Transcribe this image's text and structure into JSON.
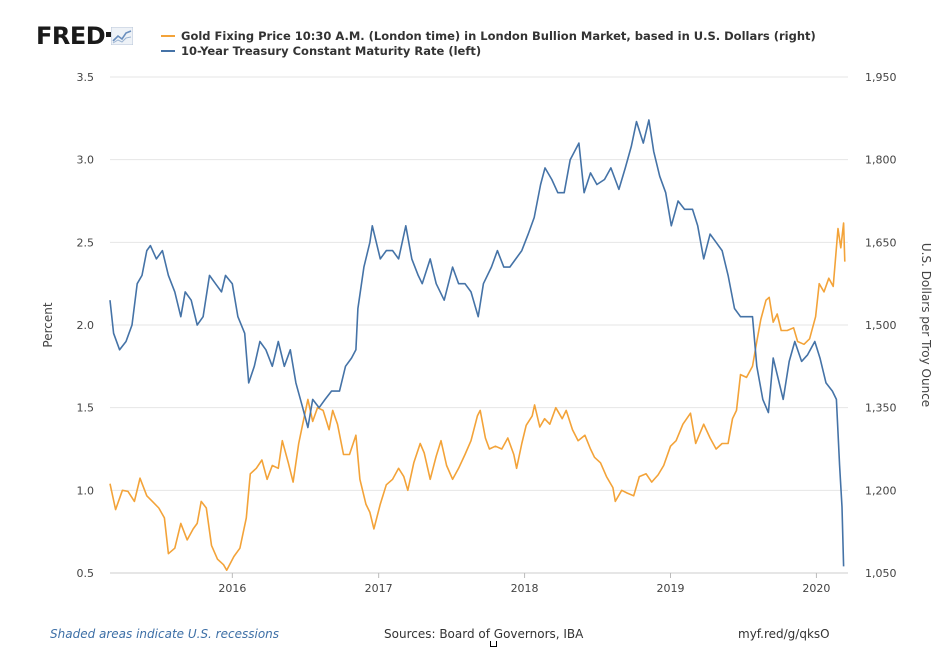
{
  "header": {
    "logo_text": "FRED",
    "logo_icon": "line-chart-icon"
  },
  "footer": {
    "recessions_note": "Shaded areas indicate U.S. recessions",
    "sources": "Sources: Board of Governors, IBA",
    "short_url": "myf.red/g/qksO"
  },
  "colors": {
    "gold": "#f3a339",
    "treasury": "#4573a7",
    "grid": "#e6e6e6",
    "axis_text": "#444444"
  },
  "chart_data": {
    "type": "line",
    "xlim": [
      "2015-03-01",
      "2020-03-20"
    ],
    "x_ticks": [
      "2016",
      "2017",
      "2018",
      "2019",
      "2020"
    ],
    "y_left": {
      "label": "Percent",
      "lim": [
        0.5,
        3.5
      ],
      "ticks": [
        "0.5",
        "1.0",
        "1.5",
        "2.0",
        "2.5",
        "3.0",
        "3.5"
      ]
    },
    "y_right": {
      "label": "U.S. Dollars per Troy Ounce",
      "lim": [
        1050,
        1950
      ],
      "ticks": [
        "1,050",
        "1,200",
        "1,350",
        "1,500",
        "1,650",
        "1,800",
        "1,950"
      ]
    },
    "grid": true,
    "legend_position": "top",
    "series": [
      {
        "name": "Gold Fixing Price 10:30 A.M. (London time) in London Bullion Market, based in U.S. Dollars (right)",
        "axis": "right",
        "color": "#f3a339",
        "points": [
          [
            "2015-03-01",
            1212
          ],
          [
            "2015-03-15",
            1165
          ],
          [
            "2015-04-01",
            1200
          ],
          [
            "2015-04-15",
            1198
          ],
          [
            "2015-05-01",
            1180
          ],
          [
            "2015-05-15",
            1222
          ],
          [
            "2015-06-01",
            1190
          ],
          [
            "2015-06-15",
            1180
          ],
          [
            "2015-07-01",
            1168
          ],
          [
            "2015-07-15",
            1150
          ],
          [
            "2015-07-25",
            1085
          ],
          [
            "2015-08-10",
            1095
          ],
          [
            "2015-08-25",
            1140
          ],
          [
            "2015-09-10",
            1110
          ],
          [
            "2015-09-25",
            1130
          ],
          [
            "2015-10-05",
            1140
          ],
          [
            "2015-10-15",
            1180
          ],
          [
            "2015-10-28",
            1168
          ],
          [
            "2015-11-10",
            1100
          ],
          [
            "2015-11-25",
            1075
          ],
          [
            "2015-12-10",
            1065
          ],
          [
            "2015-12-18",
            1055
          ],
          [
            "2016-01-05",
            1080
          ],
          [
            "2016-01-20",
            1095
          ],
          [
            "2016-02-05",
            1150
          ],
          [
            "2016-02-15",
            1230
          ],
          [
            "2016-03-01",
            1240
          ],
          [
            "2016-03-15",
            1255
          ],
          [
            "2016-03-28",
            1220
          ],
          [
            "2016-04-10",
            1245
          ],
          [
            "2016-04-25",
            1240
          ],
          [
            "2016-05-05",
            1290
          ],
          [
            "2016-05-20",
            1250
          ],
          [
            "2016-06-01",
            1215
          ],
          [
            "2016-06-15",
            1285
          ],
          [
            "2016-06-25",
            1320
          ],
          [
            "2016-07-08",
            1365
          ],
          [
            "2016-07-20",
            1325
          ],
          [
            "2016-08-01",
            1350
          ],
          [
            "2016-08-15",
            1345
          ],
          [
            "2016-08-30",
            1310
          ],
          [
            "2016-09-08",
            1345
          ],
          [
            "2016-09-20",
            1320
          ],
          [
            "2016-10-05",
            1265
          ],
          [
            "2016-10-20",
            1265
          ],
          [
            "2016-11-05",
            1300
          ],
          [
            "2016-11-15",
            1220
          ],
          [
            "2016-11-30",
            1175
          ],
          [
            "2016-12-10",
            1160
          ],
          [
            "2016-12-20",
            1130
          ],
          [
            "2017-01-05",
            1175
          ],
          [
            "2017-01-20",
            1210
          ],
          [
            "2017-02-05",
            1220
          ],
          [
            "2017-02-20",
            1240
          ],
          [
            "2017-03-05",
            1225
          ],
          [
            "2017-03-15",
            1200
          ],
          [
            "2017-03-30",
            1250
          ],
          [
            "2017-04-15",
            1285
          ],
          [
            "2017-04-25",
            1268
          ],
          [
            "2017-05-10",
            1220
          ],
          [
            "2017-05-25",
            1262
          ],
          [
            "2017-06-06",
            1290
          ],
          [
            "2017-06-20",
            1245
          ],
          [
            "2017-07-05",
            1220
          ],
          [
            "2017-07-20",
            1240
          ],
          [
            "2017-08-05",
            1265
          ],
          [
            "2017-08-20",
            1290
          ],
          [
            "2017-09-05",
            1335
          ],
          [
            "2017-09-12",
            1345
          ],
          [
            "2017-09-25",
            1295
          ],
          [
            "2017-10-05",
            1275
          ],
          [
            "2017-10-20",
            1280
          ],
          [
            "2017-11-05",
            1275
          ],
          [
            "2017-11-20",
            1295
          ],
          [
            "2017-12-05",
            1265
          ],
          [
            "2017-12-12",
            1240
          ],
          [
            "2017-12-25",
            1285
          ],
          [
            "2018-01-05",
            1318
          ],
          [
            "2018-01-20",
            1335
          ],
          [
            "2018-01-26",
            1355
          ],
          [
            "2018-02-08",
            1315
          ],
          [
            "2018-02-20",
            1330
          ],
          [
            "2018-03-05",
            1320
          ],
          [
            "2018-03-20",
            1350
          ],
          [
            "2018-04-05",
            1330
          ],
          [
            "2018-04-15",
            1345
          ],
          [
            "2018-05-01",
            1310
          ],
          [
            "2018-05-15",
            1290
          ],
          [
            "2018-06-01",
            1300
          ],
          [
            "2018-06-15",
            1275
          ],
          [
            "2018-06-25",
            1260
          ],
          [
            "2018-07-10",
            1250
          ],
          [
            "2018-07-25",
            1225
          ],
          [
            "2018-08-10",
            1205
          ],
          [
            "2018-08-16",
            1180
          ],
          [
            "2018-09-01",
            1200
          ],
          [
            "2018-09-15",
            1195
          ],
          [
            "2018-10-01",
            1190
          ],
          [
            "2018-10-15",
            1225
          ],
          [
            "2018-11-01",
            1230
          ],
          [
            "2018-11-15",
            1215
          ],
          [
            "2018-12-01",
            1228
          ],
          [
            "2018-12-15",
            1245
          ],
          [
            "2019-01-01",
            1280
          ],
          [
            "2019-01-15",
            1290
          ],
          [
            "2019-02-01",
            1320
          ],
          [
            "2019-02-20",
            1340
          ],
          [
            "2019-03-05",
            1285
          ],
          [
            "2019-03-25",
            1320
          ],
          [
            "2019-04-10",
            1295
          ],
          [
            "2019-04-25",
            1275
          ],
          [
            "2019-05-10",
            1285
          ],
          [
            "2019-05-25",
            1285
          ],
          [
            "2019-06-05",
            1330
          ],
          [
            "2019-06-15",
            1345
          ],
          [
            "2019-06-25",
            1410
          ],
          [
            "2019-07-10",
            1405
          ],
          [
            "2019-07-25",
            1425
          ],
          [
            "2019-08-05",
            1470
          ],
          [
            "2019-08-15",
            1510
          ],
          [
            "2019-08-28",
            1545
          ],
          [
            "2019-09-05",
            1550
          ],
          [
            "2019-09-15",
            1505
          ],
          [
            "2019-09-25",
            1520
          ],
          [
            "2019-10-05",
            1490
          ],
          [
            "2019-10-20",
            1490
          ],
          [
            "2019-11-05",
            1495
          ],
          [
            "2019-11-15",
            1470
          ],
          [
            "2019-12-01",
            1465
          ],
          [
            "2019-12-15",
            1475
          ],
          [
            "2019-12-30",
            1515
          ],
          [
            "2020-01-08",
            1575
          ],
          [
            "2020-01-20",
            1560
          ],
          [
            "2020-02-01",
            1585
          ],
          [
            "2020-02-12",
            1570
          ],
          [
            "2020-02-24",
            1675
          ],
          [
            "2020-03-02",
            1640
          ],
          [
            "2020-03-09",
            1685
          ],
          [
            "2020-03-12",
            1615
          ]
        ]
      },
      {
        "name": "10-Year Treasury Constant Maturity Rate (left)",
        "axis": "left",
        "color": "#4573a7",
        "points": [
          [
            "2015-03-01",
            2.15
          ],
          [
            "2015-03-10",
            1.95
          ],
          [
            "2015-03-25",
            1.85
          ],
          [
            "2015-04-10",
            1.9
          ],
          [
            "2015-04-25",
            2.0
          ],
          [
            "2015-05-08",
            2.25
          ],
          [
            "2015-05-20",
            2.3
          ],
          [
            "2015-06-01",
            2.45
          ],
          [
            "2015-06-10",
            2.48
          ],
          [
            "2015-06-25",
            2.4
          ],
          [
            "2015-07-10",
            2.45
          ],
          [
            "2015-07-25",
            2.3
          ],
          [
            "2015-08-10",
            2.2
          ],
          [
            "2015-08-25",
            2.05
          ],
          [
            "2015-09-05",
            2.2
          ],
          [
            "2015-09-20",
            2.15
          ],
          [
            "2015-10-05",
            2.0
          ],
          [
            "2015-10-20",
            2.05
          ],
          [
            "2015-11-05",
            2.3
          ],
          [
            "2015-11-20",
            2.25
          ],
          [
            "2015-12-05",
            2.2
          ],
          [
            "2015-12-15",
            2.3
          ],
          [
            "2016-01-01",
            2.25
          ],
          [
            "2016-01-15",
            2.05
          ],
          [
            "2016-02-01",
            1.95
          ],
          [
            "2016-02-11",
            1.65
          ],
          [
            "2016-02-25",
            1.75
          ],
          [
            "2016-03-10",
            1.9
          ],
          [
            "2016-03-25",
            1.85
          ],
          [
            "2016-04-10",
            1.75
          ],
          [
            "2016-04-25",
            1.9
          ],
          [
            "2016-05-10",
            1.75
          ],
          [
            "2016-05-25",
            1.85
          ],
          [
            "2016-06-08",
            1.65
          ],
          [
            "2016-06-25",
            1.5
          ],
          [
            "2016-07-08",
            1.38
          ],
          [
            "2016-07-20",
            1.55
          ],
          [
            "2016-08-05",
            1.5
          ],
          [
            "2016-08-20",
            1.55
          ],
          [
            "2016-09-05",
            1.6
          ],
          [
            "2016-09-25",
            1.6
          ],
          [
            "2016-10-10",
            1.75
          ],
          [
            "2016-10-25",
            1.8
          ],
          [
            "2016-11-05",
            1.85
          ],
          [
            "2016-11-10",
            2.1
          ],
          [
            "2016-11-25",
            2.35
          ],
          [
            "2016-12-10",
            2.5
          ],
          [
            "2016-12-16",
            2.6
          ],
          [
            "2017-01-05",
            2.4
          ],
          [
            "2017-01-20",
            2.45
          ],
          [
            "2017-02-05",
            2.45
          ],
          [
            "2017-02-20",
            2.4
          ],
          [
            "2017-03-10",
            2.6
          ],
          [
            "2017-03-25",
            2.4
          ],
          [
            "2017-04-10",
            2.3
          ],
          [
            "2017-04-20",
            2.25
          ],
          [
            "2017-05-10",
            2.4
          ],
          [
            "2017-05-25",
            2.25
          ],
          [
            "2017-06-14",
            2.15
          ],
          [
            "2017-07-05",
            2.35
          ],
          [
            "2017-07-20",
            2.25
          ],
          [
            "2017-08-05",
            2.25
          ],
          [
            "2017-08-20",
            2.2
          ],
          [
            "2017-09-07",
            2.05
          ],
          [
            "2017-09-20",
            2.25
          ],
          [
            "2017-10-10",
            2.35
          ],
          [
            "2017-10-25",
            2.45
          ],
          [
            "2017-11-10",
            2.35
          ],
          [
            "2017-11-25",
            2.35
          ],
          [
            "2017-12-10",
            2.4
          ],
          [
            "2017-12-25",
            2.45
          ],
          [
            "2018-01-10",
            2.55
          ],
          [
            "2018-01-25",
            2.65
          ],
          [
            "2018-02-10",
            2.85
          ],
          [
            "2018-02-21",
            2.95
          ],
          [
            "2018-03-10",
            2.88
          ],
          [
            "2018-03-25",
            2.8
          ],
          [
            "2018-04-10",
            2.8
          ],
          [
            "2018-04-25",
            3.0
          ],
          [
            "2018-05-17",
            3.1
          ],
          [
            "2018-05-30",
            2.8
          ],
          [
            "2018-06-15",
            2.92
          ],
          [
            "2018-07-01",
            2.85
          ],
          [
            "2018-07-20",
            2.88
          ],
          [
            "2018-08-05",
            2.95
          ],
          [
            "2018-08-25",
            2.82
          ],
          [
            "2018-09-10",
            2.95
          ],
          [
            "2018-09-25",
            3.08
          ],
          [
            "2018-10-08",
            3.23
          ],
          [
            "2018-10-25",
            3.1
          ],
          [
            "2018-11-08",
            3.24
          ],
          [
            "2018-11-20",
            3.05
          ],
          [
            "2018-12-05",
            2.9
          ],
          [
            "2018-12-20",
            2.8
          ],
          [
            "2019-01-03",
            2.6
          ],
          [
            "2019-01-20",
            2.75
          ],
          [
            "2019-02-05",
            2.7
          ],
          [
            "2019-02-25",
            2.7
          ],
          [
            "2019-03-10",
            2.6
          ],
          [
            "2019-03-25",
            2.4
          ],
          [
            "2019-04-10",
            2.55
          ],
          [
            "2019-04-25",
            2.5
          ],
          [
            "2019-05-10",
            2.45
          ],
          [
            "2019-05-25",
            2.3
          ],
          [
            "2019-06-10",
            2.1
          ],
          [
            "2019-06-25",
            2.05
          ],
          [
            "2019-07-10",
            2.05
          ],
          [
            "2019-07-25",
            2.05
          ],
          [
            "2019-08-05",
            1.75
          ],
          [
            "2019-08-20",
            1.55
          ],
          [
            "2019-09-03",
            1.47
          ],
          [
            "2019-09-15",
            1.8
          ],
          [
            "2019-09-30",
            1.65
          ],
          [
            "2019-10-10",
            1.55
          ],
          [
            "2019-10-25",
            1.78
          ],
          [
            "2019-11-08",
            1.9
          ],
          [
            "2019-11-25",
            1.78
          ],
          [
            "2019-12-10",
            1.82
          ],
          [
            "2019-12-28",
            1.9
          ],
          [
            "2020-01-10",
            1.8
          ],
          [
            "2020-01-25",
            1.65
          ],
          [
            "2020-02-10",
            1.6
          ],
          [
            "2020-02-20",
            1.55
          ],
          [
            "2020-02-28",
            1.15
          ],
          [
            "2020-03-05",
            0.9
          ],
          [
            "2020-03-09",
            0.54
          ]
        ]
      }
    ]
  }
}
